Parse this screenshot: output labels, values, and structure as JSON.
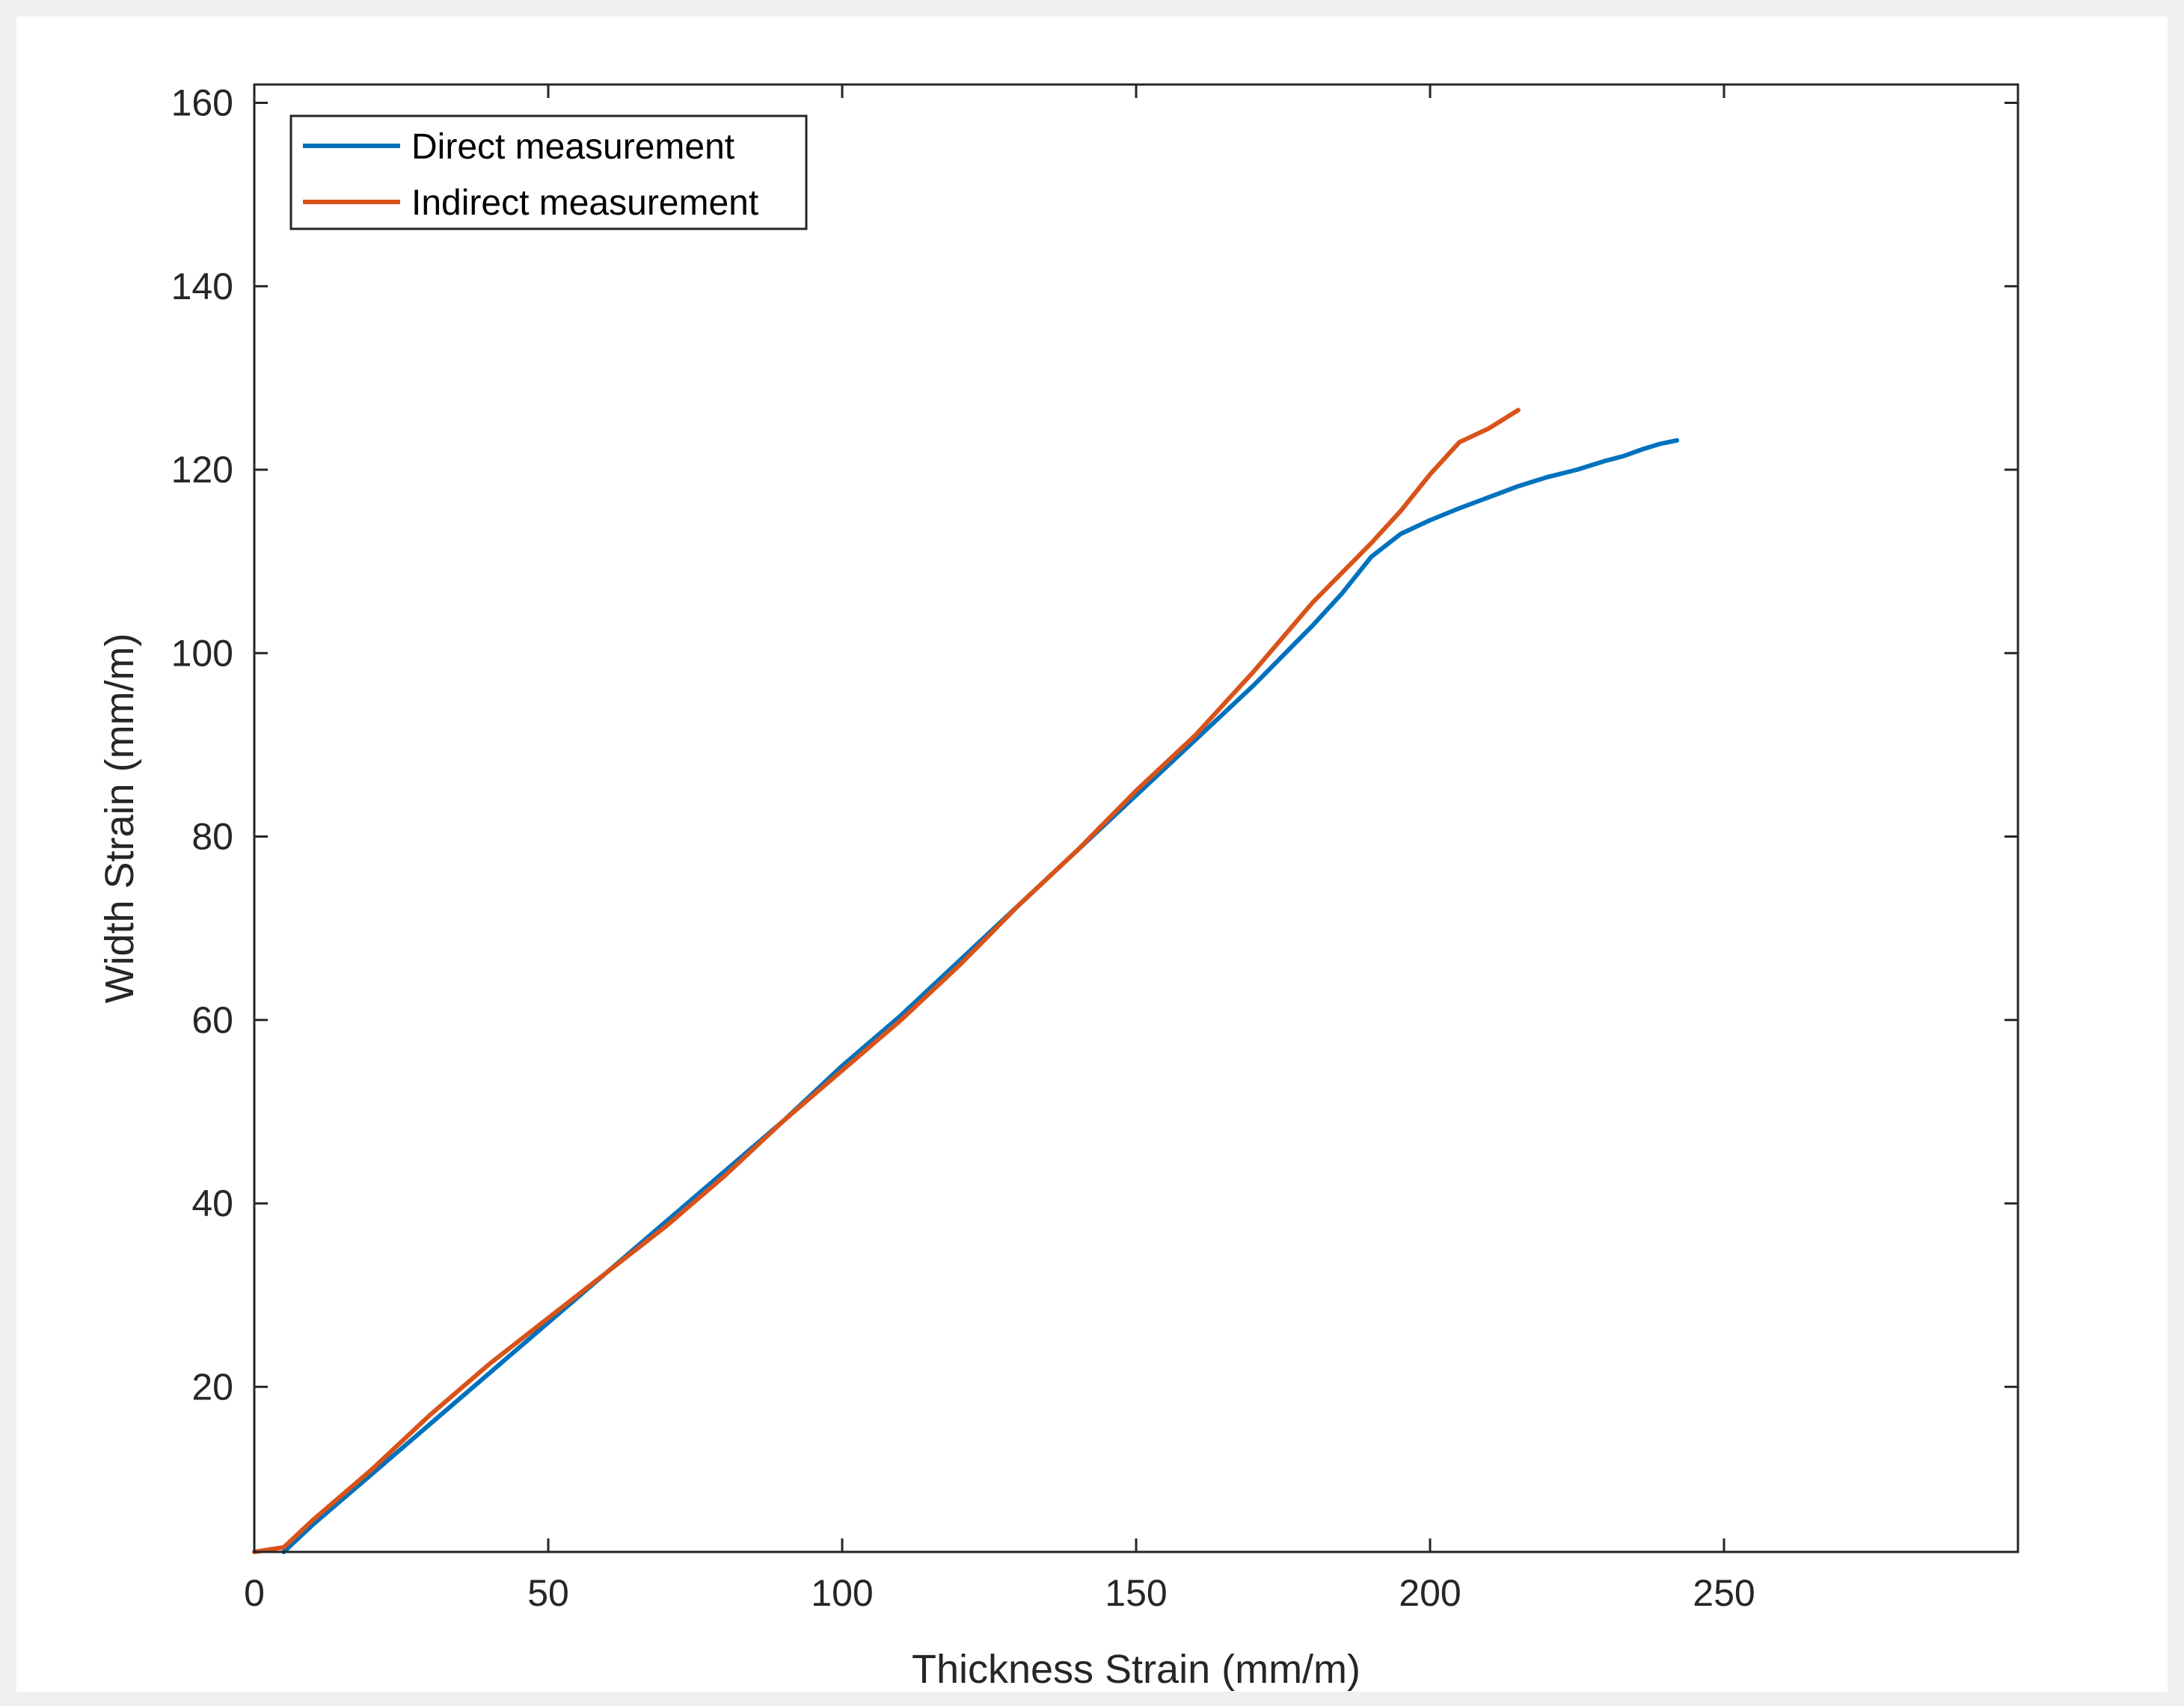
{
  "chart_data": {
    "type": "line",
    "title": "",
    "xlabel": "Thickness Strain (mm/m)",
    "ylabel": "Width Strain (mm/m)",
    "xlim": [
      0,
      300
    ],
    "ylim": [
      2,
      162
    ],
    "xticks": [
      0,
      50,
      100,
      150,
      200,
      250
    ],
    "yticks": [
      20,
      40,
      60,
      80,
      100,
      120,
      140,
      160
    ],
    "grid": false,
    "legend_position": "top-left",
    "series": [
      {
        "name": "Direct measurement",
        "color": "#0072BD",
        "x": [
          5,
          10,
          20,
          30,
          40,
          50,
          60,
          70,
          80,
          90,
          100,
          110,
          120,
          130,
          140,
          150,
          160,
          170,
          180,
          185,
          190,
          195,
          200,
          205,
          210,
          215,
          220,
          225,
          230,
          233,
          236,
          239,
          242
        ],
        "y": [
          2,
          5,
          10.5,
          16,
          21.5,
          27,
          32.5,
          38,
          43.5,
          49,
          55,
          60.5,
          66.5,
          72.5,
          78.5,
          84.5,
          90.5,
          96.5,
          103,
          106.5,
          110.5,
          113,
          114.5,
          115.8,
          117,
          118.2,
          119.2,
          120,
          121,
          121.5,
          122.2,
          122.8,
          123.2
        ]
      },
      {
        "name": "Indirect measurement",
        "color": "#D95319",
        "x": [
          0,
          5,
          10,
          20,
          30,
          40,
          50,
          60,
          70,
          80,
          90,
          100,
          110,
          120,
          130,
          140,
          150,
          160,
          170,
          180,
          190,
          195,
          200,
          205,
          210,
          215
        ],
        "y": [
          2,
          2.5,
          5.5,
          11,
          17,
          22.5,
          27.5,
          32.5,
          37.5,
          43,
          49,
          54.5,
          60,
          66,
          72.5,
          78.5,
          85,
          91,
          98,
          105.5,
          112,
          115.5,
          119.5,
          123,
          124.5,
          126.5
        ]
      }
    ]
  }
}
